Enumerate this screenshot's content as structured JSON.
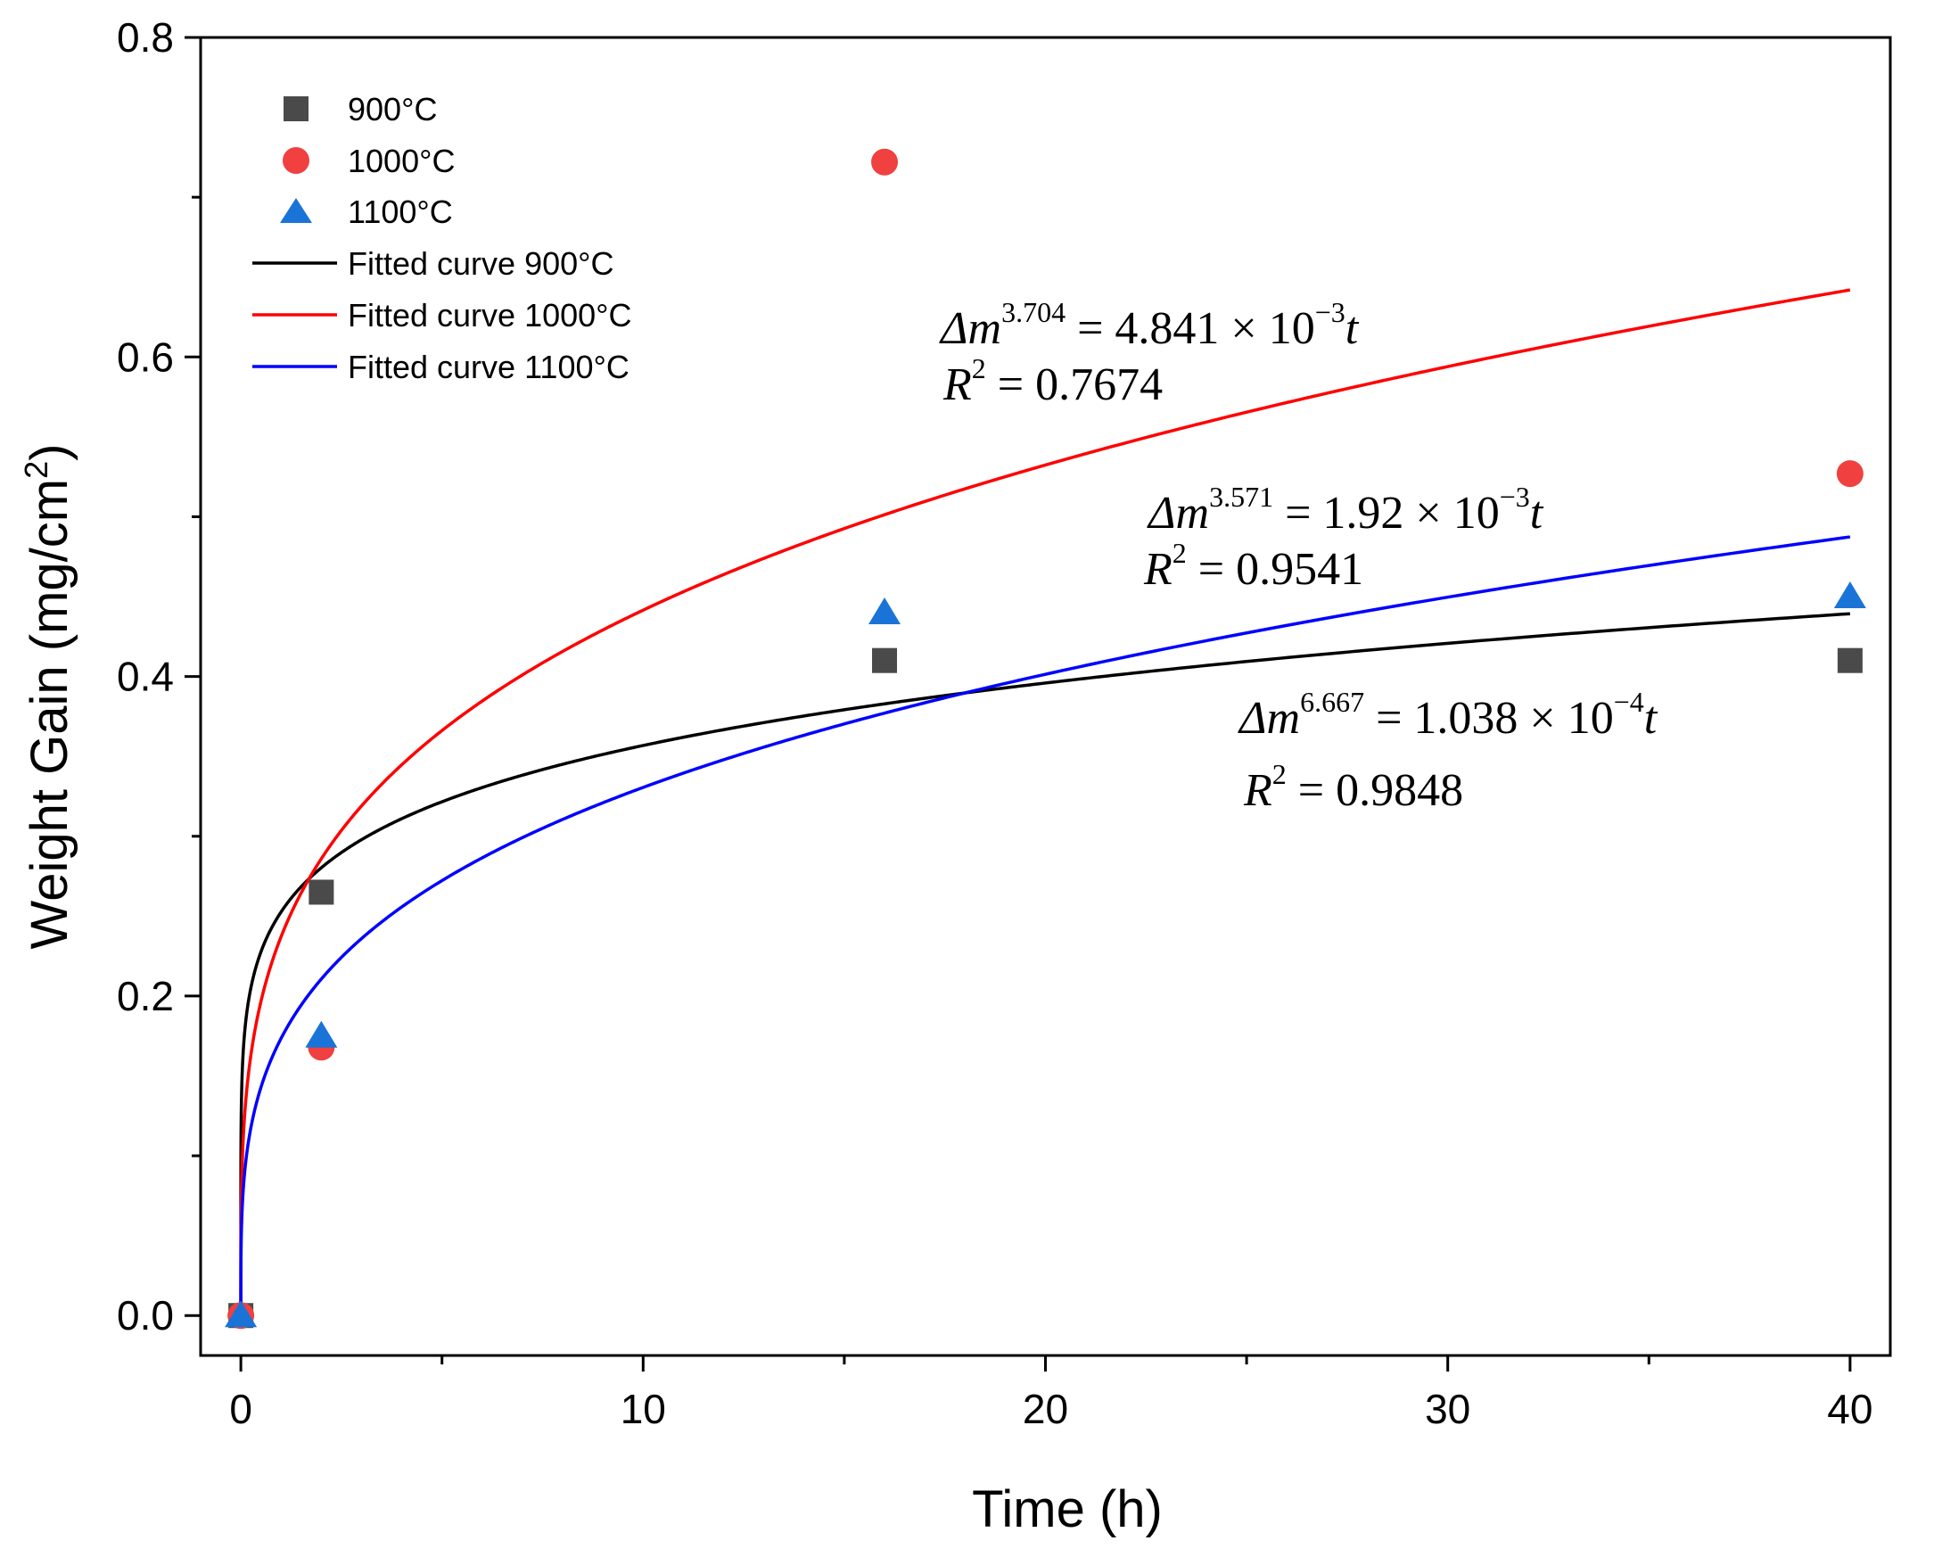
{
  "chart_data": {
    "type": "scatter",
    "title": "",
    "xlabel": "Time (h)",
    "ylabel_main": "Weight Gain (mg/cm",
    "ylabel_sup": "2",
    "ylabel_close": ")",
    "xlim": [
      -1,
      41
    ],
    "ylim": [
      -0.025,
      0.8
    ],
    "xticks": [
      0,
      10,
      20,
      30,
      40
    ],
    "xtick_labels": [
      "0",
      "10",
      "20",
      "30",
      "40"
    ],
    "xminor": [
      5,
      15,
      25,
      35
    ],
    "yticks": [
      0.0,
      0.2,
      0.4,
      0.6,
      0.8
    ],
    "ytick_labels": [
      "0.0",
      "0.2",
      "0.4",
      "0.6",
      "0.8"
    ],
    "yminor": [
      0.1,
      0.3,
      0.5,
      0.7
    ],
    "series": [
      {
        "name": "900°C",
        "marker": "square",
        "color": "#4a4a4a",
        "x": [
          0,
          2,
          16,
          40
        ],
        "y": [
          0,
          0.265,
          0.41,
          0.41
        ]
      },
      {
        "name": "1000°C",
        "marker": "circle",
        "color": "#f04040",
        "x": [
          0,
          2,
          16,
          40
        ],
        "y": [
          0,
          0.168,
          0.722,
          0.527
        ]
      },
      {
        "name": "1100°C",
        "marker": "triangle",
        "color": "#1a74d8",
        "x": [
          0,
          2,
          16,
          40
        ],
        "y": [
          0,
          0.175,
          0.44,
          0.45
        ]
      }
    ],
    "fits": [
      {
        "name": "Fitted curve 900°C",
        "color": "#000000",
        "n": 6.667,
        "k": 0.0001038,
        "equation_lhs": "Δm",
        "exponent": "6.667",
        "equation_rhs": " = 1.038 × 10",
        "power": "−4",
        "variable": "t",
        "r2_label": "R",
        "r2_sup": "2",
        "r2_value": " = 0.9848"
      },
      {
        "name": "Fitted curve 1000°C",
        "color": "#ff0000",
        "n": 3.704,
        "k": 0.004841,
        "equation_lhs": "Δm",
        "exponent": "3.704",
        "equation_rhs": " = 4.841 × 10",
        "power": "−3",
        "variable": "t",
        "r2_label": "R",
        "r2_sup": "2",
        "r2_value": " = 0.7674"
      },
      {
        "name": "Fitted curve 1100°C",
        "color": "#0000ff",
        "n": 3.571,
        "k": 0.00192,
        "equation_lhs": "Δm",
        "exponent": "3.571",
        "equation_rhs": " = 1.92 × 10",
        "power": "−3",
        "variable": "t",
        "r2_label": "R",
        "r2_sup": "2",
        "r2_value": " = 0.9541"
      }
    ],
    "legend": {
      "position": "top-left",
      "entries": [
        "900°C",
        "1000°C",
        "1100°C",
        "Fitted curve 900°C",
        "Fitted curve 1000°C",
        "Fitted curve 1100°C"
      ]
    }
  }
}
